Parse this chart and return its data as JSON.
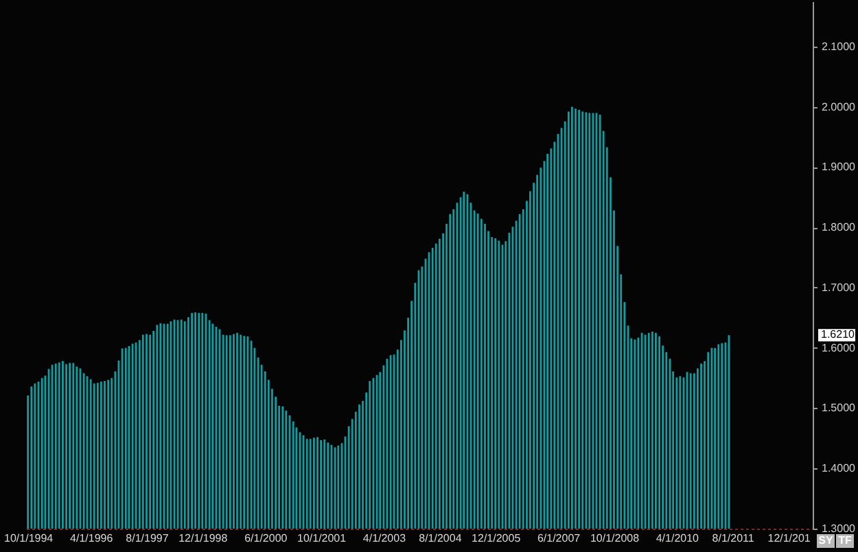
{
  "chart_data": {
    "type": "bar",
    "color": "#119ea2",
    "x": [
      "1994-10",
      "1994-11",
      "1994-12",
      "1995-01",
      "1995-02",
      "1995-03",
      "1995-04",
      "1995-05",
      "1995-06",
      "1995-07",
      "1995-08",
      "1995-09",
      "1995-10",
      "1995-11",
      "1995-12",
      "1996-01",
      "1996-02",
      "1996-03",
      "1996-04",
      "1996-05",
      "1996-06",
      "1996-07",
      "1996-08",
      "1996-09",
      "1996-10",
      "1996-11",
      "1996-12",
      "1997-01",
      "1997-02",
      "1997-03",
      "1997-04",
      "1997-05",
      "1997-06",
      "1997-07",
      "1997-08",
      "1997-09",
      "1997-10",
      "1997-11",
      "1997-12",
      "1998-01",
      "1998-02",
      "1998-03",
      "1998-04",
      "1998-05",
      "1998-06",
      "1998-07",
      "1998-08",
      "1998-09",
      "1998-10",
      "1998-11",
      "1998-12",
      "1999-01",
      "1999-02",
      "1999-03",
      "1999-04",
      "1999-05",
      "1999-06",
      "1999-07",
      "1999-08",
      "1999-09",
      "1999-10",
      "1999-11",
      "1999-12",
      "2000-01",
      "2000-02",
      "2000-03",
      "2000-04",
      "2000-05",
      "2000-06",
      "2000-07",
      "2000-08",
      "2000-09",
      "2000-10",
      "2000-11",
      "2000-12",
      "2001-01",
      "2001-02",
      "2001-03",
      "2001-04",
      "2001-05",
      "2001-06",
      "2001-07",
      "2001-08",
      "2001-09",
      "2001-10",
      "2001-11",
      "2001-12",
      "2002-01",
      "2002-02",
      "2002-03",
      "2002-04",
      "2002-05",
      "2002-06",
      "2002-07",
      "2002-08",
      "2002-09",
      "2002-10",
      "2002-11",
      "2002-12",
      "2003-01",
      "2003-02",
      "2003-03",
      "2003-04",
      "2003-05",
      "2003-06",
      "2003-07",
      "2003-08",
      "2003-09",
      "2003-10",
      "2003-11",
      "2003-12",
      "2004-01",
      "2004-02",
      "2004-03",
      "2004-04",
      "2004-05",
      "2004-06",
      "2004-07",
      "2004-08",
      "2004-09",
      "2004-10",
      "2004-11",
      "2004-12",
      "2005-01",
      "2005-02",
      "2005-03",
      "2005-04",
      "2005-05",
      "2005-06",
      "2005-07",
      "2005-08",
      "2005-09",
      "2005-10",
      "2005-11",
      "2005-12",
      "2006-01",
      "2006-02",
      "2006-03",
      "2006-04",
      "2006-05",
      "2006-06",
      "2006-07",
      "2006-08",
      "2006-09",
      "2006-10",
      "2006-11",
      "2006-12",
      "2007-01",
      "2007-02",
      "2007-03",
      "2007-04",
      "2007-05",
      "2007-06",
      "2007-07",
      "2007-08",
      "2007-09",
      "2007-10",
      "2007-11",
      "2007-12",
      "2008-01",
      "2008-02",
      "2008-03",
      "2008-04",
      "2008-05",
      "2008-06",
      "2008-07",
      "2008-08",
      "2008-09",
      "2008-10",
      "2008-11",
      "2008-12",
      "2009-01",
      "2009-02",
      "2009-03",
      "2009-04",
      "2009-05",
      "2009-06",
      "2009-07",
      "2009-08",
      "2009-09",
      "2009-10",
      "2009-11",
      "2009-12",
      "2010-01",
      "2010-02",
      "2010-03",
      "2010-04",
      "2010-05",
      "2010-06",
      "2010-07",
      "2010-08",
      "2010-09",
      "2010-10",
      "2010-11",
      "2010-12",
      "2011-01",
      "2011-02",
      "2011-03",
      "2011-04",
      "2011-05",
      "2011-06",
      "2011-07"
    ],
    "values": [
      1.521,
      1.536,
      1.541,
      1.544,
      1.55,
      1.554,
      1.565,
      1.572,
      1.574,
      1.576,
      1.578,
      1.573,
      1.575,
      1.575,
      1.569,
      1.566,
      1.558,
      1.553,
      1.548,
      1.541,
      1.542,
      1.544,
      1.545,
      1.547,
      1.55,
      1.561,
      1.579,
      1.599,
      1.6,
      1.603,
      1.607,
      1.609,
      1.613,
      1.622,
      1.623,
      1.622,
      1.628,
      1.638,
      1.641,
      1.64,
      1.64,
      1.644,
      1.647,
      1.646,
      1.647,
      1.644,
      1.651,
      1.658,
      1.659,
      1.658,
      1.658,
      1.657,
      1.646,
      1.64,
      1.635,
      1.631,
      1.622,
      1.621,
      1.621,
      1.623,
      1.625,
      1.622,
      1.62,
      1.619,
      1.612,
      1.6,
      1.584,
      1.572,
      1.561,
      1.547,
      1.532,
      1.519,
      1.504,
      1.503,
      1.496,
      1.488,
      1.478,
      1.468,
      1.46,
      1.455,
      1.449,
      1.449,
      1.451,
      1.452,
      1.447,
      1.448,
      1.443,
      1.439,
      1.435,
      1.438,
      1.442,
      1.453,
      1.47,
      1.482,
      1.494,
      1.506,
      1.512,
      1.526,
      1.545,
      1.55,
      1.555,
      1.56,
      1.571,
      1.582,
      1.588,
      1.589,
      1.597,
      1.613,
      1.629,
      1.65,
      1.678,
      1.708,
      1.729,
      1.735,
      1.748,
      1.759,
      1.766,
      1.773,
      1.781,
      1.79,
      1.806,
      1.822,
      1.83,
      1.841,
      1.85,
      1.859,
      1.855,
      1.841,
      1.828,
      1.823,
      1.814,
      1.806,
      1.794,
      1.784,
      1.782,
      1.778,
      1.771,
      1.777,
      1.791,
      1.801,
      1.811,
      1.822,
      1.83,
      1.844,
      1.86,
      1.874,
      1.887,
      1.899,
      1.91,
      1.922,
      1.931,
      1.942,
      1.955,
      1.965,
      1.976,
      1.992,
      2.0,
      1.997,
      1.995,
      1.992,
      1.991,
      1.99,
      1.99,
      1.99,
      1.987,
      1.96,
      1.933,
      1.883,
      1.828,
      1.769,
      1.722,
      1.676,
      1.637,
      1.616,
      1.614,
      1.617,
      1.625,
      1.622,
      1.625,
      1.627,
      1.625,
      1.619,
      1.604,
      1.593,
      1.582,
      1.561,
      1.551,
      1.553,
      1.551,
      1.56,
      1.558,
      1.558,
      1.566,
      1.574,
      1.578,
      1.593,
      1.6,
      1.6,
      1.606,
      1.608,
      1.609,
      1.621
    ],
    "xlim": [
      "1994-09-15",
      "2013-07-01"
    ],
    "xticks": [
      {
        "value": "1994-10-01",
        "label": "10/1/1994"
      },
      {
        "value": "1996-04-01",
        "label": "4/1/1996"
      },
      {
        "value": "1997-08-01",
        "label": "8/1/1997"
      },
      {
        "value": "1998-12-01",
        "label": "12/1/1998"
      },
      {
        "value": "2000-06-01",
        "label": "6/1/2000"
      },
      {
        "value": "2001-10-01",
        "label": "10/1/2001"
      },
      {
        "value": "2003-04-01",
        "label": "4/1/2003"
      },
      {
        "value": "2004-08-01",
        "label": "8/1/2004"
      },
      {
        "value": "2005-12-01",
        "label": "12/1/2005"
      },
      {
        "value": "2007-06-01",
        "label": "6/1/2007"
      },
      {
        "value": "2008-10-01",
        "label": "10/1/2008"
      },
      {
        "value": "2010-04-01",
        "label": "4/1/2010"
      },
      {
        "value": "2011-08-01",
        "label": "8/1/2011"
      },
      {
        "value": "2012-12-01",
        "label": "12/1/201"
      }
    ],
    "ylim": [
      1.3,
      2.175
    ],
    "yticks": [
      {
        "value": 1.3,
        "label": "1.3000"
      },
      {
        "value": 1.4,
        "label": "1.4000"
      },
      {
        "value": 1.5,
        "label": "1.5000"
      },
      {
        "value": 1.6,
        "label": "1.6000"
      },
      {
        "value": 1.7,
        "label": "1.7000"
      },
      {
        "value": 1.8,
        "label": "1.8000"
      },
      {
        "value": 1.9,
        "label": "1.9000"
      },
      {
        "value": 2.0,
        "label": "2.0000"
      },
      {
        "value": 2.1,
        "label": "2.1000"
      }
    ],
    "grid": false,
    "annotations": [
      "1.6210",
      "SY",
      "TF"
    ]
  }
}
